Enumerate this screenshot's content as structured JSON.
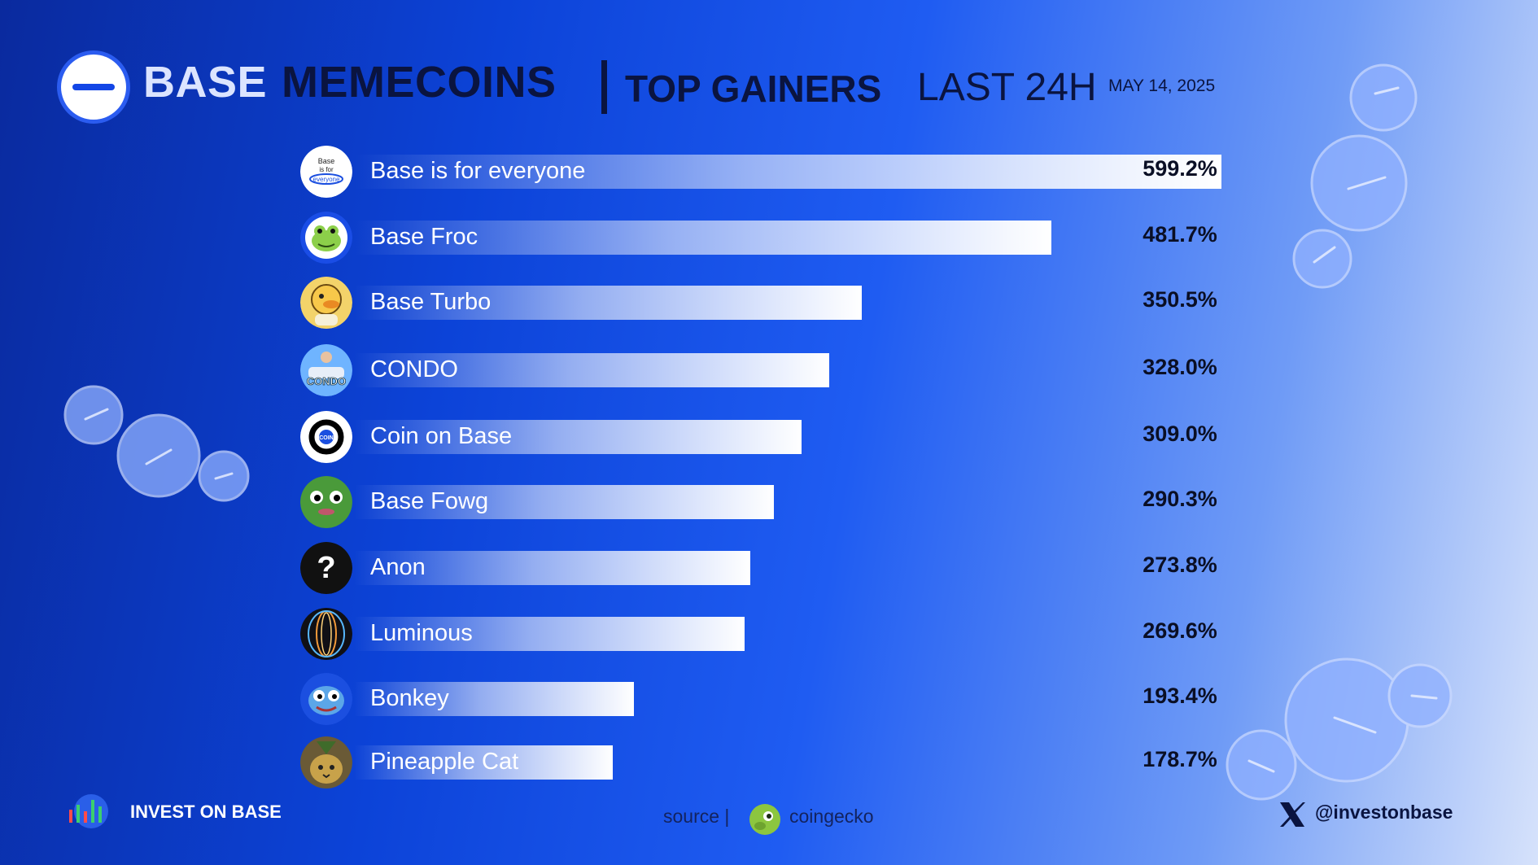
{
  "header": {
    "title_part1": "BASE",
    "title_part2": "MEMECOINS",
    "subtitle_bold": "TOP GAINERS",
    "subtitle_light": "LAST 24H",
    "date": "MAY 14, 2025"
  },
  "chart_data": {
    "type": "bar",
    "orientation": "horizontal",
    "categories": [
      "Base is for everyone",
      "Base Froc",
      "Base Turbo",
      "CONDO",
      "Coin on Base",
      "Base Fowg",
      "Anon",
      "Luminous",
      "Bonkey",
      "Pineapple Cat"
    ],
    "values": [
      599.2,
      481.7,
      350.5,
      328.0,
      309.0,
      290.3,
      273.8,
      269.6,
      193.4,
      178.7
    ],
    "value_labels": [
      "599.2%",
      "481.7%",
      "350.5%",
      "328.0%",
      "309.0%",
      "290.3%",
      "273.8%",
      "269.6%",
      "193.4%",
      "178.7%"
    ],
    "unit": "%",
    "bar_color": "#ffffff"
  },
  "icons": [
    "base-everyone-icon",
    "frog-icon",
    "duck-icon",
    "condo-car-icon",
    "coin-logo-icon",
    "pepe-icon",
    "question-mark-icon",
    "luminous-orb-icon",
    "blue-pepe-icon",
    "pineapple-cat-icon"
  ],
  "footer": {
    "brand": "INVEST ON BASE",
    "source_label": "source  |",
    "source_name": "coingecko",
    "handle": "@investonbase"
  },
  "colors": {
    "accent_dark": "#0a1440",
    "background_start": "#0a2a9e",
    "background_end": "#d6e2fb"
  }
}
